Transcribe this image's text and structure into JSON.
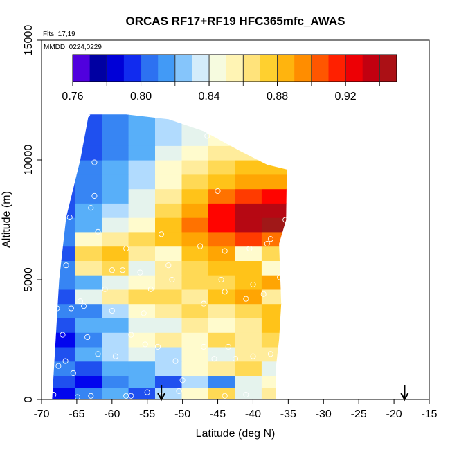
{
  "chart_data": {
    "type": "heatmap",
    "title": "ORCAS RF17+RF19 HFC365mfc_AWAS",
    "flights_label": "Flts: 17,19",
    "date_label": "MMDD: 0224,0229",
    "xlabel": "Latitude (deg N)",
    "ylabel": "Altitude (m)",
    "xlim": [
      -70,
      -15
    ],
    "ylim": [
      0,
      15000
    ],
    "x_ticks": [
      -70,
      -65,
      -60,
      -55,
      -50,
      -45,
      -40,
      -35,
      -30,
      -25,
      -20,
      -15
    ],
    "x_tick_labels": [
      "-70",
      "-65",
      "-60",
      "-55",
      "-50",
      "-45",
      "-40",
      "-35",
      "-30",
      "-25",
      "-20",
      "-15"
    ],
    "y_ticks": [
      0,
      5000,
      10000,
      15000
    ],
    "y_tick_labels": [
      "0",
      "5000",
      "10000",
      "15000"
    ],
    "colorbar": {
      "range": [
        0.76,
        0.95
      ],
      "ticks": [
        0.76,
        0.8,
        0.84,
        0.88,
        0.92
      ],
      "tick_labels": [
        "0.76",
        "0.80",
        "0.84",
        "0.88",
        "0.92"
      ],
      "colors": [
        "#7a00ff",
        "#0000a0",
        "#0000ee",
        "#2a6cf0",
        "#4aa8f8",
        "#cde9ff",
        "#ffffd8",
        "#ffe890",
        "#ffcc20",
        "#ffa000",
        "#ff5000",
        "#ff0000",
        "#c00010",
        "#a01818"
      ]
    },
    "bands": [
      {
        "y0": 0,
        "y1": 500,
        "values": [
          0.79,
          0.81,
          0.82,
          0.8,
          0.83,
          0.85,
          0.87,
          0.84,
          0.86
        ]
      },
      {
        "y0": 500,
        "y1": 1000,
        "values": [
          0.8,
          0.79,
          0.81,
          0.82,
          0.8,
          0.83,
          0.81,
          0.84,
          0.85
        ]
      },
      {
        "y0": 1000,
        "y1": 1600,
        "values": [
          0.81,
          0.8,
          0.82,
          0.82,
          0.83,
          0.85,
          0.86,
          0.87,
          0.84
        ]
      },
      {
        "y0": 1600,
        "y1": 2200,
        "values": [
          0.8,
          0.82,
          0.83,
          0.84,
          0.83,
          0.85,
          0.84,
          0.86,
          0.86
        ]
      },
      {
        "y0": 2200,
        "y1": 2800,
        "values": [
          0.79,
          0.81,
          0.83,
          0.85,
          0.86,
          0.85,
          0.87,
          0.86,
          0.87
        ]
      },
      {
        "y0": 2800,
        "y1": 3400,
        "values": [
          0.8,
          0.82,
          0.82,
          0.84,
          0.84,
          0.86,
          0.85,
          0.86,
          0.88
        ]
      },
      {
        "y0": 3400,
        "y1": 4000,
        "values": [
          0.81,
          0.81,
          0.83,
          0.85,
          0.86,
          0.87,
          0.86,
          0.87,
          0.88
        ]
      },
      {
        "y0": 4000,
        "y1": 4600,
        "values": [
          0.8,
          0.84,
          0.86,
          0.87,
          0.87,
          0.86,
          0.88,
          0.89,
          0.86
        ]
      },
      {
        "y0": 4600,
        "y1": 5200,
        "values": [
          0.81,
          0.82,
          0.84,
          0.85,
          0.86,
          0.87,
          0.87,
          0.88,
          0.89
        ]
      },
      {
        "y0": 5200,
        "y1": 5800,
        "values": [
          0.81,
          0.86,
          0.87,
          0.84,
          0.86,
          0.87,
          0.88,
          0.88,
          0.85
        ]
      },
      {
        "y0": 5800,
        "y1": 6400,
        "values": [
          0.8,
          0.87,
          0.88,
          0.86,
          0.85,
          0.88,
          0.89,
          0.85,
          0.87
        ]
      },
      {
        "y0": 6400,
        "y1": 7000,
        "values": [
          0.81,
          0.85,
          0.86,
          0.87,
          0.88,
          0.89,
          0.9,
          0.91,
          0.9
        ]
      },
      {
        "y0": 7000,
        "y1": 7600,
        "values": [
          0.81,
          0.82,
          0.84,
          0.85,
          0.88,
          0.9,
          0.92,
          0.94,
          0.95
        ]
      },
      {
        "y0": 7600,
        "y1": 8200,
        "values": [
          0.8,
          0.82,
          0.83,
          0.84,
          0.87,
          0.89,
          0.92,
          0.94,
          0.94
        ]
      },
      {
        "y0": 8200,
        "y1": 8800,
        "values": [
          0.8,
          0.81,
          0.82,
          0.84,
          0.86,
          0.88,
          0.9,
          0.91,
          0.92
        ]
      },
      {
        "y0": 8800,
        "y1": 9400,
        "values": [
          0.8,
          0.81,
          0.82,
          0.83,
          0.85,
          0.87,
          0.88,
          0.89,
          0.89
        ]
      },
      {
        "y0": 9400,
        "y1": 10000,
        "values": [
          0.8,
          0.81,
          0.82,
          0.83,
          0.85,
          0.86,
          0.87,
          0.88,
          0.88
        ]
      },
      {
        "y0": 10000,
        "y1": 10600,
        "values": [
          0.8,
          0.8,
          0.81,
          0.82,
          0.84,
          0.85,
          0.86,
          0.86,
          0.86
        ]
      },
      {
        "y0": 10600,
        "y1": 11200,
        "values": [
          0.79,
          0.8,
          0.81,
          0.82,
          0.83,
          0.84,
          0.85,
          0.85,
          0.85
        ]
      },
      {
        "y0": 11200,
        "y1": 12000,
        "values": [
          0.79,
          0.8,
          0.81,
          0.82,
          0.83,
          0.84,
          0.85,
          0.85,
          0.85
        ]
      }
    ],
    "domain_outline": [
      [
        -68.5,
        0
      ],
      [
        -68.0,
        2500
      ],
      [
        -67.5,
        5000
      ],
      [
        -66.5,
        7600
      ],
      [
        -64.5,
        10000
      ],
      [
        -63.3,
        11900
      ],
      [
        -58.0,
        11900
      ],
      [
        -52.0,
        11700
      ],
      [
        -47.0,
        11200
      ],
      [
        -42.0,
        10400
      ],
      [
        -38.0,
        9800
      ],
      [
        -35.2,
        9600
      ],
      [
        -35.3,
        7500
      ],
      [
        -36.3,
        6500
      ],
      [
        -36.0,
        4000
      ],
      [
        -36.3,
        2500
      ],
      [
        -36.8,
        1200
      ],
      [
        -36.8,
        0
      ]
    ],
    "samples": [
      [
        -68.3,
        200
      ],
      [
        -67.6,
        1400
      ],
      [
        -66.6,
        1600
      ],
      [
        -64.9,
        100
      ],
      [
        -63.0,
        150
      ],
      [
        -62.0,
        1900
      ],
      [
        -58.0,
        150
      ],
      [
        -57.3,
        150
      ],
      [
        -55.0,
        300
      ],
      [
        -53.0,
        150
      ],
      [
        -50.5,
        350
      ],
      [
        -50.0,
        800
      ],
      [
        -44.0,
        150
      ],
      [
        -41.0,
        200
      ],
      [
        -65.5,
        1100
      ],
      [
        -63.5,
        2600
      ],
      [
        -59.5,
        1800
      ],
      [
        -55.3,
        2300
      ],
      [
        -53.5,
        2200
      ],
      [
        -51.0,
        1600
      ],
      [
        -45.5,
        1700
      ],
      [
        -42.5,
        1700
      ],
      [
        -40.0,
        1800
      ],
      [
        -37.5,
        1900
      ],
      [
        -67.0,
        2700
      ],
      [
        -64.0,
        3900
      ],
      [
        -60.0,
        3700
      ],
      [
        -57.3,
        2700
      ],
      [
        -55.5,
        3600
      ],
      [
        -47.0,
        2200
      ],
      [
        -43.5,
        2200
      ],
      [
        -67.8,
        3800
      ],
      [
        -65.8,
        3800
      ],
      [
        -64.5,
        4100
      ],
      [
        -61.0,
        4600
      ],
      [
        -54.5,
        4600
      ],
      [
        -47.0,
        4000
      ],
      [
        -44.0,
        4500
      ],
      [
        -41.0,
        4200
      ],
      [
        -38.5,
        4400
      ],
      [
        -66.5,
        5600
      ],
      [
        -60.0,
        5400
      ],
      [
        -58.5,
        5400
      ],
      [
        -56.0,
        5300
      ],
      [
        -52.0,
        5600
      ],
      [
        -51.5,
        5000
      ],
      [
        -44.5,
        5000
      ],
      [
        -40.0,
        4800
      ],
      [
        -36.2,
        5100
      ],
      [
        -62.0,
        7000
      ],
      [
        -58.0,
        6300
      ],
      [
        -53.0,
        6900
      ],
      [
        -47.5,
        6400
      ],
      [
        -44.0,
        6200
      ],
      [
        -40.5,
        6300
      ],
      [
        -38.0,
        6500
      ],
      [
        -37.5,
        6700
      ],
      [
        -35.4,
        7500
      ],
      [
        -66.0,
        7600
      ],
      [
        -63.0,
        8000
      ],
      [
        -62.5,
        8500
      ],
      [
        -45.0,
        8700
      ],
      [
        -62.5,
        9900
      ],
      [
        -46.5,
        11000
      ],
      [
        -63.5,
        11900
      ]
    ],
    "arrows": [
      -53.0,
      -18.5
    ]
  }
}
